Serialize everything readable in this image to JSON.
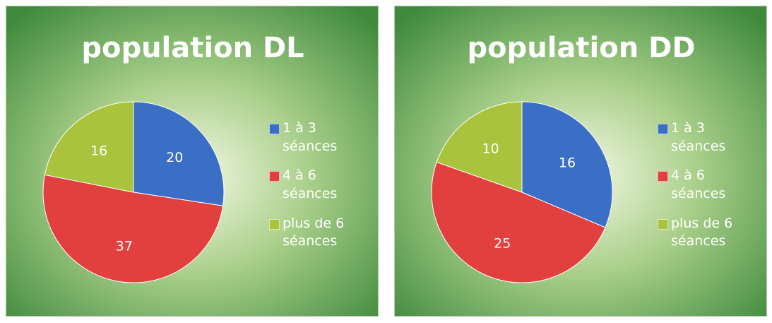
{
  "chart_data": [
    {
      "type": "pie",
      "title": "population DL",
      "categories": [
        "1 à 3 séances",
        "4 à 6 séances",
        "plus de 6 séances"
      ],
      "values": [
        20,
        37,
        16
      ],
      "colors": [
        "#3b6fc6",
        "#e23f3f",
        "#a9c43c"
      ]
    },
    {
      "type": "pie",
      "title": "population DD",
      "categories": [
        "1 à 3 séances",
        "4 à 6 séances",
        "plus de 6 séances"
      ],
      "values": [
        16,
        25,
        10
      ],
      "colors": [
        "#3b6fc6",
        "#e23f3f",
        "#a9c43c"
      ]
    }
  ]
}
